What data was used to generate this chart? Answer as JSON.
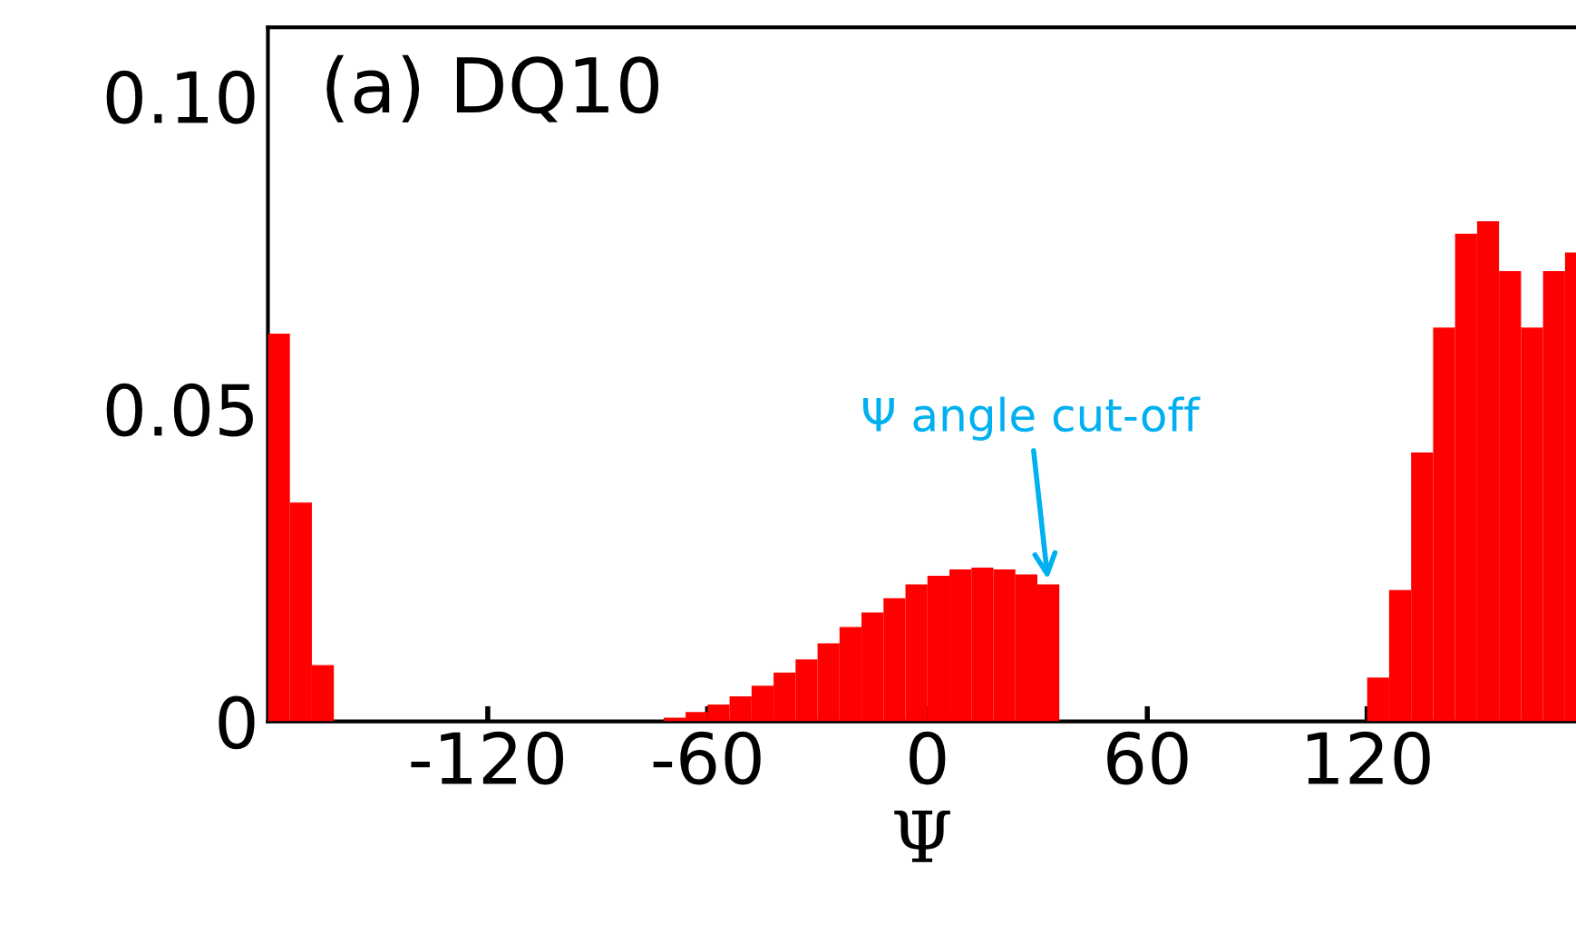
{
  "chart_data": {
    "type": "histogram",
    "xlabel": "Ψ",
    "color": "#ff0000",
    "bins": [
      -180,
      -174,
      -168,
      -162,
      -72,
      -66,
      -60,
      -54,
      -48,
      -42,
      -36,
      -30,
      -24,
      -18,
      -12,
      -6,
      0,
      6,
      12,
      18,
      24,
      30,
      36,
      120,
      126,
      132,
      138,
      144,
      150,
      156,
      162,
      168,
      174,
      177
    ],
    "values": [
      0.062,
      0.035,
      0.009,
      0,
      0.0006,
      0.0015,
      0.0027,
      0.004,
      0.0057,
      0.0078,
      0.0099,
      0.0125,
      0.0151,
      0.0174,
      0.0197,
      0.0219,
      0.0233,
      0.0243,
      0.0246,
      0.0243,
      0.0235,
      0.0219,
      0,
      0.007,
      0.021,
      0.043,
      0.063,
      0.078,
      0.08,
      0.072,
      0.063,
      0.072,
      0.075
    ],
    "xlim": [
      -180,
      177
    ],
    "xticks": [
      -120,
      -60,
      0,
      60,
      120
    ],
    "ylim": [
      0,
      0.111
    ],
    "yticks": [
      0,
      0.05,
      {
        "value": 0.1,
        "label": "0.10"
      }
    ],
    "grid": false,
    "legend": false,
    "annotations": [
      "(a) DQ10",
      {
        "text": "Ψ angle cut-off",
        "x": 33,
        "y": 0.0219
      }
    ]
  }
}
